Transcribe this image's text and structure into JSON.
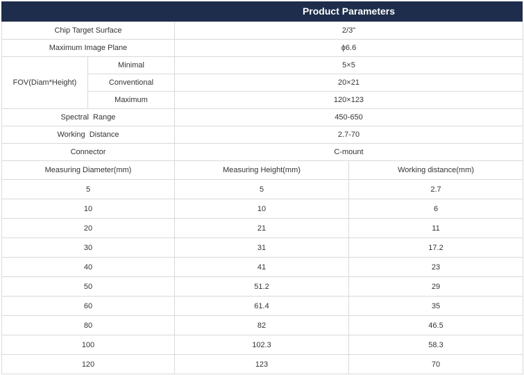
{
  "header": {
    "title": "Product Parameters"
  },
  "specs": {
    "chip_target_surface": {
      "label": "Chip Target Surface",
      "value": "2/3\""
    },
    "max_image_plane": {
      "label": "Maximum Image Plane",
      "value": "ϕ6.6"
    },
    "fov": {
      "label": "FOV(Diam*Height)",
      "rows": [
        {
          "label": "Minimal",
          "value": "5×5"
        },
        {
          "label": "Conventional",
          "value": "20×21"
        },
        {
          "label": "Maximum",
          "value": "120×123"
        }
      ]
    },
    "spectral_range": {
      "label": "Spectral  Range",
      "value": "450-650"
    },
    "working_distance": {
      "label": "Working  Distance",
      "value": "2.7-70"
    },
    "connector": {
      "label": "Connector",
      "value": "C-mount"
    }
  },
  "measure_table": {
    "headers": [
      "Measuring Diameter(mm)",
      "Measuring Height(mm)",
      "Working distance(mm)"
    ],
    "rows": [
      [
        "5",
        "5",
        "2.7"
      ],
      [
        "10",
        "10",
        "6"
      ],
      [
        "20",
        "21",
        "11"
      ],
      [
        "30",
        "31",
        "17.2"
      ],
      [
        "40",
        "41",
        "23"
      ],
      [
        "50",
        "51.2",
        "29"
      ],
      [
        "60",
        "61.4",
        "35"
      ],
      [
        "80",
        "82",
        "46.5"
      ],
      [
        "100",
        "102.3",
        "58.3"
      ],
      [
        "120",
        "123",
        "70"
      ]
    ]
  }
}
